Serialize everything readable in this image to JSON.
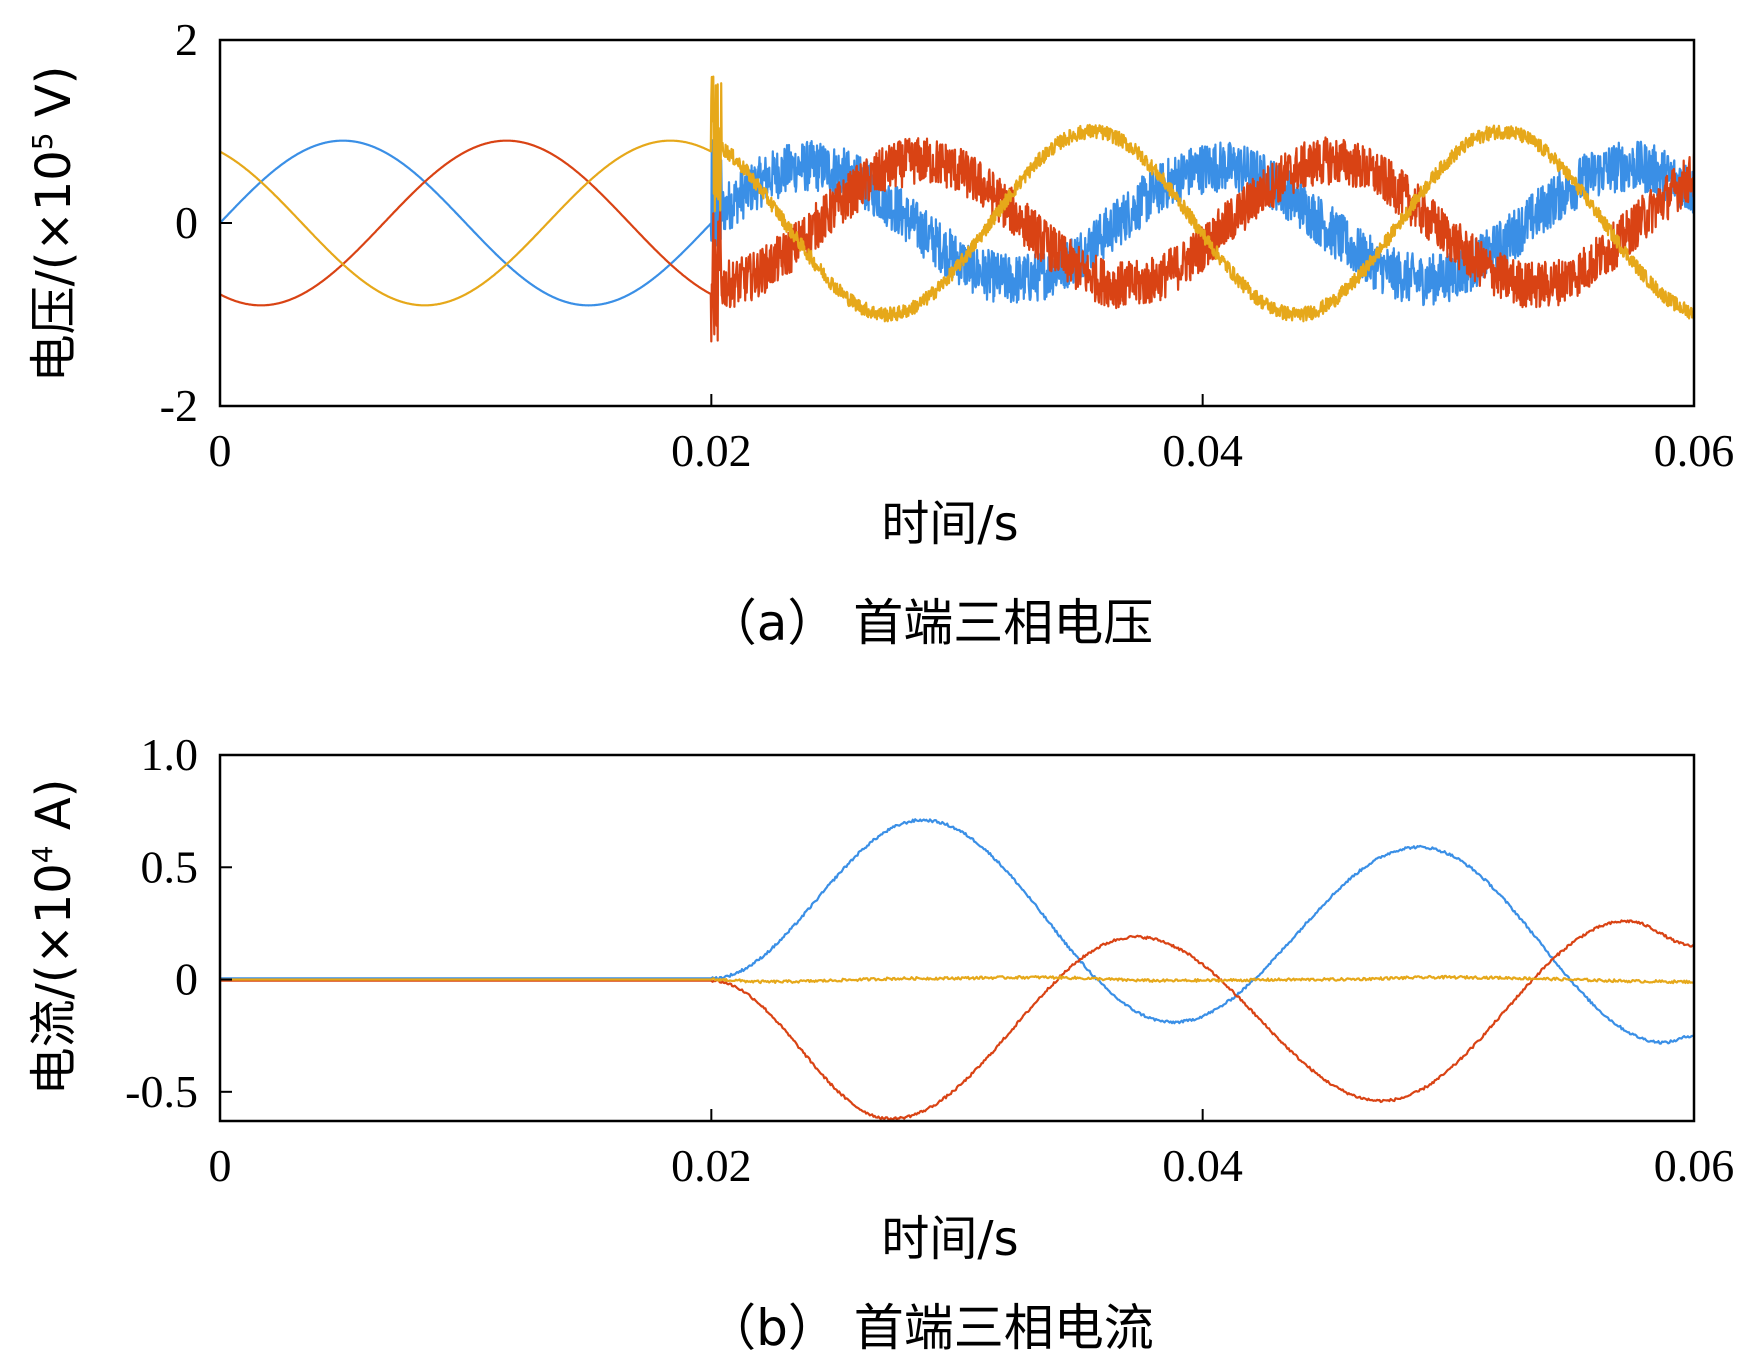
{
  "colors": {
    "A": "#3a8fe6",
    "B": "#d94314",
    "C": "#e6a81a"
  },
  "chart_data": [
    {
      "type": "line",
      "panel": "a",
      "caption": "（a） 首端三相电压",
      "xlabel": "时间/s",
      "ylabel": {
        "text": "电压/(×10",
        "exp": "5",
        "unit": " V)"
      },
      "xlim": [
        0,
        0.06
      ],
      "ylim": [
        -2,
        2
      ],
      "xticks": [
        0,
        0.02,
        0.04,
        0.06
      ],
      "xtick_labels": [
        "0",
        "0.02",
        "0.04",
        "0.06"
      ],
      "yticks": [
        -2,
        0,
        2
      ],
      "ytick_labels": [
        "-2",
        "0",
        "2"
      ],
      "grid": false,
      "series": [
        {
          "color": "A",
          "before_fault": {
            "amplitude": 0.9,
            "phase_deg": 0
          },
          "after_fault": {
            "amplitude": 0.62,
            "frequency_hz": 60,
            "phase_deg": 3,
            "offset": 0,
            "noise": 0.28
          }
        },
        {
          "color": "B",
          "before_fault": {
            "amplitude": 0.9,
            "phase_deg": -120
          },
          "after_fault": {
            "amplitude": 0.68,
            "frequency_hz": 60,
            "phase_deg": -95,
            "offset": 0,
            "noise": 0.26
          }
        },
        {
          "color": "C",
          "before_fault": {
            "amplitude": 0.9,
            "phase_deg": 120
          },
          "after_fault": {
            "amplitude": 1.0,
            "frequency_hz": 60,
            "phase_deg": 115,
            "offset": 0,
            "noise": 0.08
          }
        }
      ],
      "fault_time": 0.02,
      "sample_points_x": [
        0,
        0.005,
        0.02,
        0.027,
        0.038,
        0.05,
        0.06
      ]
    },
    {
      "type": "line",
      "panel": "b",
      "caption": "（b） 首端三相电流",
      "xlabel": "时间/s",
      "ylabel": {
        "text": "电流/(×10",
        "exp": "4",
        "unit": " A)"
      },
      "xlim": [
        0,
        0.06
      ],
      "ylim": [
        -0.63,
        1.0
      ],
      "xticks": [
        0,
        0.02,
        0.04,
        0.06
      ],
      "xtick_labels": [
        "0",
        "0.02",
        "0.04",
        "0.06"
      ],
      "yticks": [
        -0.5,
        0,
        0.5,
        1.0
      ],
      "ytick_labels": [
        "-0.5",
        "0",
        "0.5",
        "1.0"
      ],
      "grid": false,
      "series": [
        {
          "color": "A",
          "points": [
            [
              0,
              0.005
            ],
            [
              0.02,
              0.005
            ],
            [
              0.0286,
              0.71
            ],
            [
              0.0388,
              -0.19
            ],
            [
              0.0488,
              0.59
            ],
            [
              0.0588,
              -0.28
            ],
            [
              0.06,
              -0.25
            ]
          ]
        },
        {
          "color": "B",
          "points": [
            [
              0,
              -0.005
            ],
            [
              0.02,
              -0.005
            ],
            [
              0.0273,
              -0.62
            ],
            [
              0.0373,
              0.19
            ],
            [
              0.0473,
              -0.54
            ],
            [
              0.0573,
              0.26
            ],
            [
              0.06,
              0.15
            ]
          ]
        },
        {
          "color": "C",
          "points": [
            [
              0,
              0.0
            ],
            [
              0.02,
              0.0
            ],
            [
              0.0222,
              -0.01
            ],
            [
              0.0286,
              0.005
            ],
            [
              0.0333,
              0.01
            ],
            [
              0.0384,
              -0.005
            ],
            [
              0.0449,
              0.0
            ],
            [
              0.0499,
              0.01
            ],
            [
              0.06,
              -0.01
            ]
          ]
        }
      ]
    }
  ]
}
